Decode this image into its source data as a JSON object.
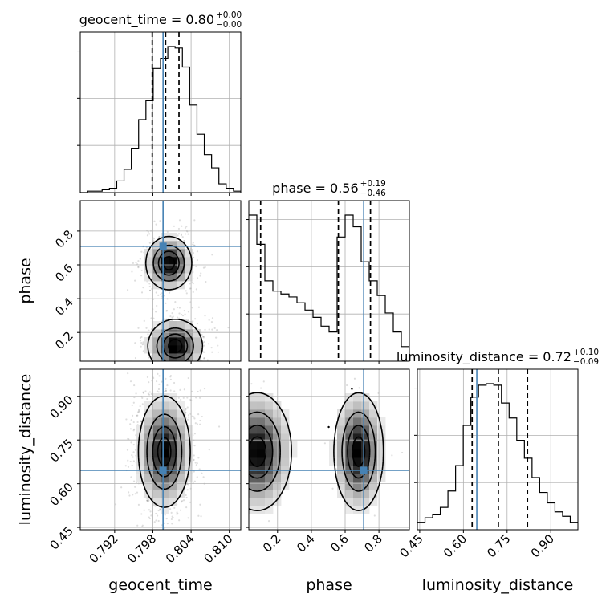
{
  "chart_data": {
    "type": "corner",
    "parameters": [
      "geocent_time",
      "phase",
      "luminosity_distance"
    ],
    "truth_color": "#4682b4",
    "colors": {
      "hist": "#000000",
      "quantile": "#000000",
      "grid": "#b0b0b0",
      "truth": "#4682b4"
    },
    "titles": [
      {
        "main": "geocent_time = 0.80",
        "sup": "+0.00",
        "sub": "−0.00"
      },
      {
        "main": "phase = 0.56",
        "sup": "+0.19",
        "sub": "−0.46"
      },
      {
        "main": "luminosity_distance = 0.72",
        "sup": "+0.10",
        "sub": "−0.09"
      }
    ],
    "axis_labels": {
      "x": [
        "geocent_time",
        "phase",
        "luminosity_distance"
      ],
      "y": [
        "phase",
        "luminosity_distance"
      ]
    },
    "ranges": {
      "geocent_time": [
        0.7866,
        0.8118
      ],
      "phase": [
        0.03,
        0.98
      ],
      "luminosity_distance": [
        0.442,
        0.993
      ]
    },
    "ticks": {
      "geocent_time": {
        "values": [
          0.792,
          0.798,
          0.804,
          0.81
        ],
        "labels": [
          "0.792",
          "0.798",
          "0.804",
          "0.810"
        ]
      },
      "phase": {
        "values": [
          0.2,
          0.4,
          0.6,
          0.8
        ],
        "labels": [
          "0.2",
          "0.4",
          "0.6",
          "0.8"
        ]
      },
      "luminosity_distance": {
        "values": [
          0.45,
          0.6,
          0.75,
          0.9
        ],
        "labels": [
          "0.45",
          "0.60",
          "0.75",
          "0.90"
        ]
      }
    },
    "truths": {
      "geocent_time": 0.7996,
      "phase": 0.71,
      "luminosity_distance": 0.646
    },
    "quantiles": {
      "geocent_time": [
        0.7979,
        0.8,
        0.8021
      ],
      "phase": [
        0.1,
        0.56,
        0.75
      ],
      "luminosity_distance": [
        0.63,
        0.72,
        0.82
      ]
    },
    "histograms": {
      "geocent_time": {
        "edges_range": [
          0.7866,
          0.8118
        ],
        "counts": [
          0,
          1,
          1,
          2,
          3,
          8,
          16,
          30,
          50,
          63,
          85,
          92,
          100,
          99,
          86,
          60,
          40,
          26,
          17,
          6,
          3,
          1
        ]
      },
      "phase": {
        "edges_range": [
          0.03,
          0.98
        ],
        "counts": [
          100,
          80,
          55,
          48,
          46,
          44,
          40,
          35,
          30,
          24,
          20,
          85,
          100,
          92,
          68,
          55,
          45,
          33,
          20,
          10
        ]
      },
      "luminosity_distance": {
        "edges_range": [
          0.442,
          0.993
        ],
        "counts": [
          5,
          8,
          10,
          15,
          26,
          43,
          70,
          89,
          97,
          98,
          97,
          85,
          75,
          60,
          48,
          35,
          25,
          18,
          12,
          9,
          5
        ]
      }
    },
    "joint_modes": {
      "phase_vs_geocent_time": [
        {
          "x": 0.8005,
          "y": 0.61,
          "sx": 0.0016,
          "sy": 0.07
        },
        {
          "x": 0.8015,
          "y": 0.12,
          "sx": 0.0019,
          "sy": 0.07
        }
      ],
      "luminosity_distance_vs_geocent_time": [
        {
          "x": 0.7998,
          "y": 0.71,
          "sx": 0.0018,
          "sy": 0.085
        }
      ],
      "luminosity_distance_vs_phase": [
        {
          "x": 0.08,
          "y": 0.71,
          "sx": 0.09,
          "sy": 0.09
        },
        {
          "x": 0.68,
          "y": 0.71,
          "sx": 0.065,
          "sy": 0.09
        }
      ]
    }
  }
}
